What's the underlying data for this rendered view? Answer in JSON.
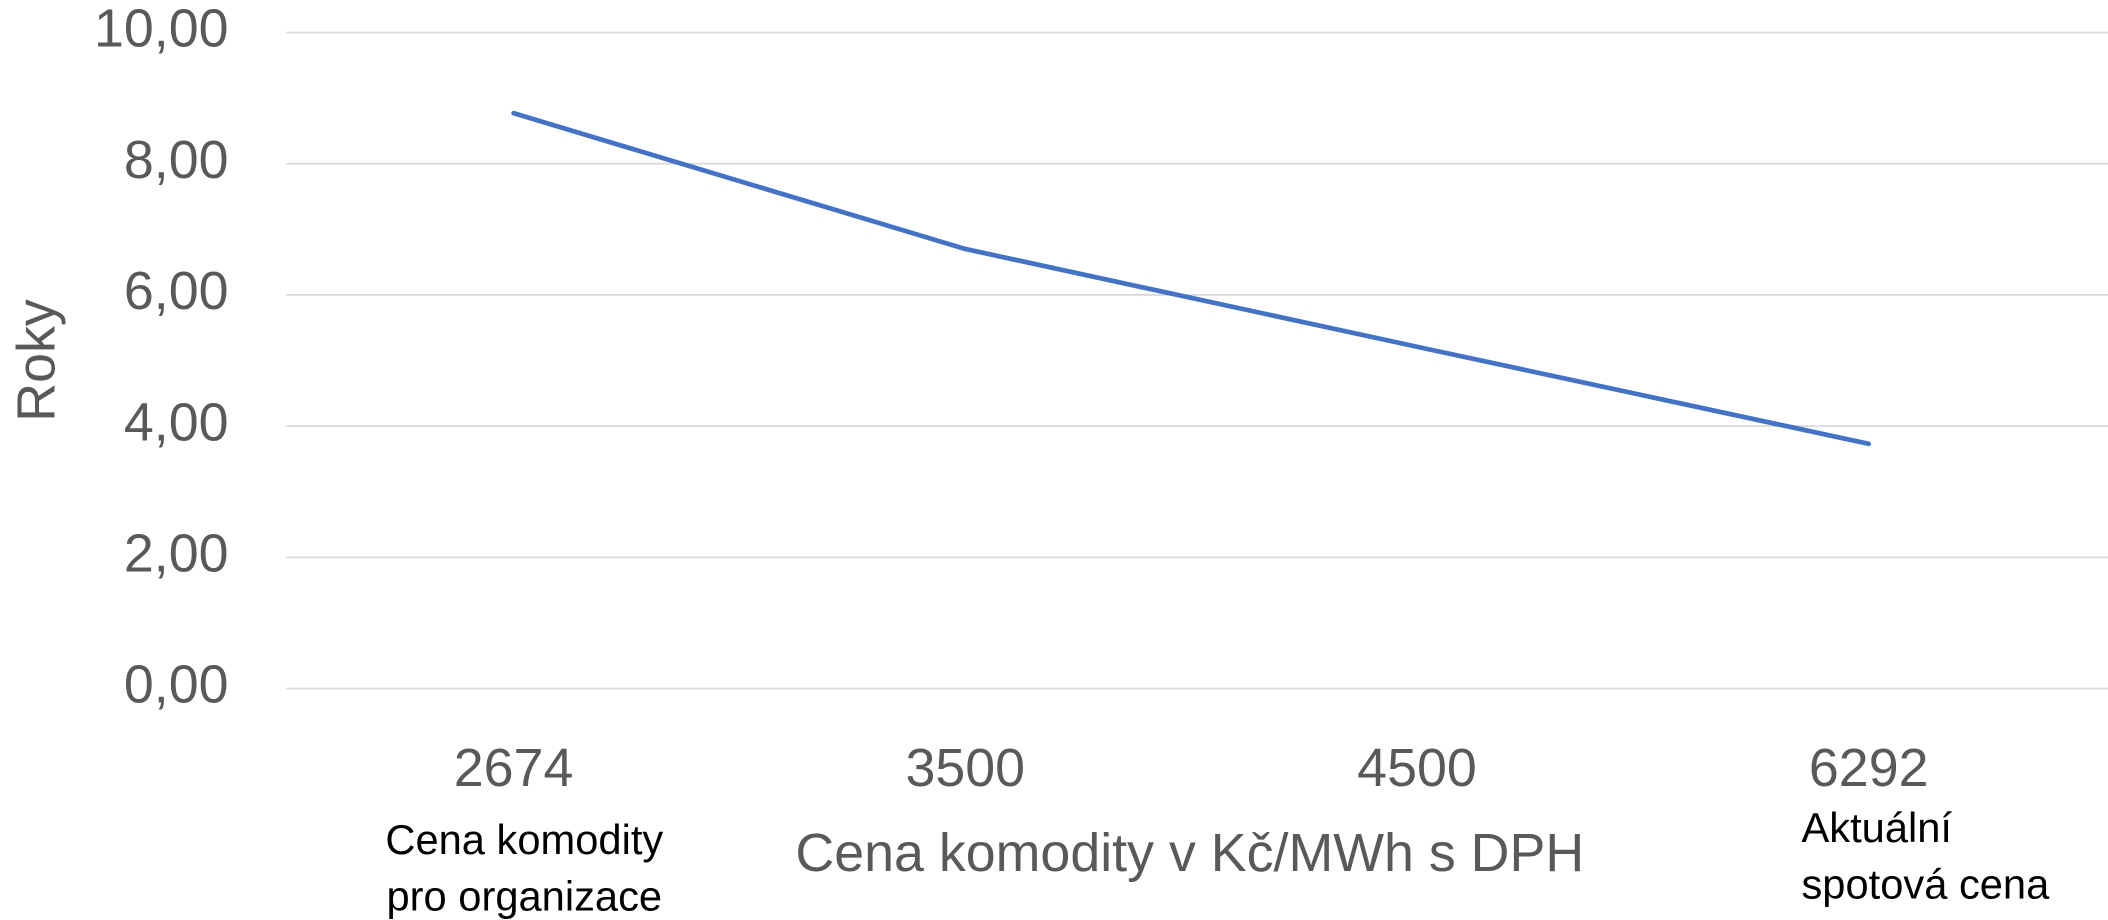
{
  "chart_data": {
    "type": "line",
    "y_label": "Roky",
    "x_label": "Cena komodity v Kč/MWh s DPH",
    "categories": [
      "2674",
      "3500",
      "4500",
      "6292"
    ],
    "series": [
      {
        "name": "Roky",
        "color": "#4472c4",
        "values": [
          8.77,
          6.7,
          5.21,
          3.73
        ]
      }
    ],
    "ylim": [
      0,
      10
    ],
    "yticks": [
      {
        "value": 0,
        "label": "0,00"
      },
      {
        "value": 2,
        "label": "2,00"
      },
      {
        "value": 4,
        "label": "4,00"
      },
      {
        "value": 6,
        "label": "6,00"
      },
      {
        "value": 8,
        "label": "8,00"
      },
      {
        "value": 10,
        "label": "10,00"
      }
    ],
    "grid": true,
    "annotations": [
      {
        "category": 0,
        "lines": [
          "Cena komodity",
          "pro organizace"
        ]
      },
      {
        "category": 3,
        "lines": [
          "Aktuální",
          "spotová cena"
        ]
      }
    ]
  }
}
